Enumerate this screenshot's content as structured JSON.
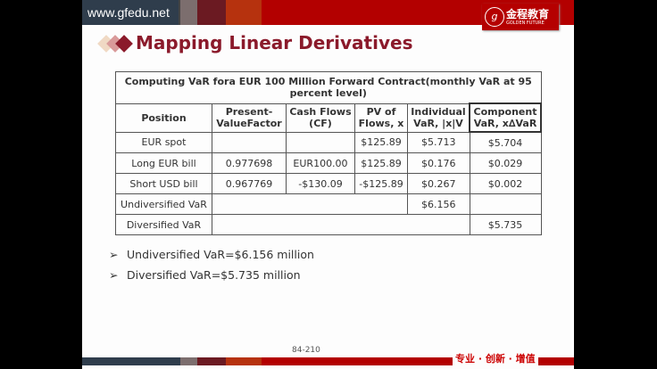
{
  "header": {
    "url": "www.gfedu.net",
    "logo_cn": "金程教育",
    "logo_en": "GOLDEN FUTURE",
    "logo_seal": "g"
  },
  "title": "Mapping Linear Derivatives",
  "table": {
    "caption": "Computing VaR fora EUR 100 Million Forward Contract(monthly VaR at 95 percent level)",
    "columns": [
      "Position",
      "Present-ValueFactor",
      "Cash Flows (CF)",
      "PV of Flows, x",
      "Individual VaR, |x|V",
      "Component VaR, x∆VaR"
    ],
    "rows": [
      [
        "EUR spot",
        "",
        "",
        "$125.89",
        "$5.713",
        "$5.704"
      ],
      [
        "Long EUR bill",
        "0.977698",
        "EUR100.00",
        "$125.89",
        "$0.176",
        "$0.029"
      ],
      [
        "Short USD bill",
        "0.967769",
        "-$130.09",
        "-$125.89",
        "$0.267",
        "$0.002"
      ]
    ],
    "undiversified": {
      "label": "Undiversified VaR",
      "value": "$6.156"
    },
    "diversified": {
      "label": "Diversified VaR",
      "value": "$5.735"
    }
  },
  "bullets": [
    "Undiversified VaR=$6.156 million",
    "Diversified VaR=$5.735 million"
  ],
  "footer": {
    "page": "84-210",
    "slogan": "专业 · 创新 · 增值"
  }
}
